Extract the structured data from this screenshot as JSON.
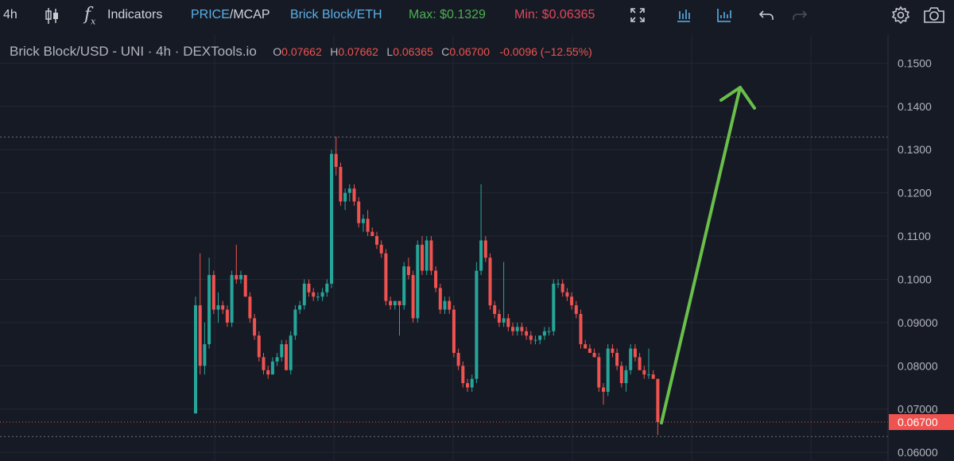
{
  "toolbar": {
    "interval": "4h",
    "indicators_label": "Indicators",
    "price_label": "PRICE",
    "mcap_label": "/MCAP",
    "pair_label": "Brick Block/ETH",
    "max_label": "Max: $0.1329",
    "min_label": "Min: $0.06365"
  },
  "legend": {
    "symbol": "Brick Block/USD - UNI · 4h · DEXTools.io",
    "o_key": "O",
    "o_val": "0.07662",
    "h_key": "H",
    "h_val": "0.07662",
    "l_key": "L",
    "l_val": "0.06365",
    "c_key": "C",
    "c_val": "0.06700",
    "change": "-0.0096 (−12.55%)"
  },
  "colors": {
    "background": "#161a25",
    "up": "#26a69a",
    "down": "#ef5350",
    "arrow": "#6abf4b",
    "max_text": "#4caf50",
    "min_text": "#e0475b",
    "link_text": "#5ab1e8"
  },
  "chart_data": {
    "type": "candlestick",
    "ylim": [
      0.058,
      0.1565
    ],
    "y_ticks": [
      "0.1500",
      "0.1400",
      "0.1300",
      "0.1200",
      "0.1100",
      "0.1000",
      "0.09000",
      "0.08000",
      "0.07000",
      "0.06000"
    ],
    "last_price_label": "0.06700",
    "max_line": 0.1329,
    "min_line": 0.06365,
    "last_price": 0.067,
    "candles": [
      [
        0.069,
        0.096,
        0.069,
        0.094
      ],
      [
        0.094,
        0.106,
        0.078,
        0.08
      ],
      [
        0.08,
        0.09,
        0.078,
        0.085
      ],
      [
        0.085,
        0.105,
        0.084,
        0.101
      ],
      [
        0.101,
        0.102,
        0.092,
        0.093
      ],
      [
        0.093,
        0.097,
        0.09,
        0.094
      ],
      [
        0.094,
        0.095,
        0.092,
        0.093
      ],
      [
        0.093,
        0.094,
        0.089,
        0.09
      ],
      [
        0.09,
        0.102,
        0.089,
        0.101
      ],
      [
        0.101,
        0.108,
        0.099,
        0.1
      ],
      [
        0.1,
        0.102,
        0.099,
        0.101
      ],
      [
        0.101,
        0.101,
        0.096,
        0.096
      ],
      [
        0.096,
        0.097,
        0.09,
        0.091
      ],
      [
        0.091,
        0.092,
        0.086,
        0.087
      ],
      [
        0.087,
        0.088,
        0.081,
        0.082
      ],
      [
        0.082,
        0.083,
        0.078,
        0.079
      ],
      [
        0.079,
        0.08,
        0.077,
        0.078
      ],
      [
        0.078,
        0.082,
        0.078,
        0.081
      ],
      [
        0.081,
        0.083,
        0.08,
        0.082
      ],
      [
        0.082,
        0.086,
        0.081,
        0.085
      ],
      [
        0.085,
        0.086,
        0.079,
        0.079
      ],
      [
        0.079,
        0.088,
        0.078,
        0.087
      ],
      [
        0.087,
        0.094,
        0.086,
        0.093
      ],
      [
        0.093,
        0.095,
        0.092,
        0.094
      ],
      [
        0.094,
        0.1,
        0.093,
        0.099
      ],
      [
        0.099,
        0.1,
        0.096,
        0.097
      ],
      [
        0.097,
        0.098,
        0.095,
        0.096
      ],
      [
        0.096,
        0.097,
        0.095,
        0.096
      ],
      [
        0.096,
        0.098,
        0.095,
        0.097
      ],
      [
        0.097,
        0.1,
        0.096,
        0.099
      ],
      [
        0.099,
        0.13,
        0.098,
        0.129
      ],
      [
        0.129,
        0.133,
        0.124,
        0.126
      ],
      [
        0.126,
        0.127,
        0.117,
        0.118
      ],
      [
        0.118,
        0.121,
        0.116,
        0.12
      ],
      [
        0.12,
        0.122,
        0.118,
        0.121
      ],
      [
        0.121,
        0.122,
        0.117,
        0.118
      ],
      [
        0.118,
        0.119,
        0.112,
        0.113
      ],
      [
        0.113,
        0.115,
        0.111,
        0.114
      ],
      [
        0.114,
        0.116,
        0.11,
        0.111
      ],
      [
        0.111,
        0.112,
        0.11,
        0.11
      ],
      [
        0.11,
        0.111,
        0.107,
        0.108
      ],
      [
        0.108,
        0.109,
        0.105,
        0.106
      ],
      [
        0.106,
        0.107,
        0.094,
        0.095
      ],
      [
        0.095,
        0.096,
        0.093,
        0.094
      ],
      [
        0.094,
        0.095,
        0.093,
        0.095
      ],
      [
        0.095,
        0.095,
        0.087,
        0.094
      ],
      [
        0.094,
        0.104,
        0.093,
        0.103
      ],
      [
        0.103,
        0.105,
        0.1,
        0.101
      ],
      [
        0.101,
        0.102,
        0.09,
        0.091
      ],
      [
        0.091,
        0.109,
        0.09,
        0.108
      ],
      [
        0.108,
        0.11,
        0.101,
        0.102
      ],
      [
        0.102,
        0.11,
        0.101,
        0.109
      ],
      [
        0.109,
        0.11,
        0.101,
        0.102
      ],
      [
        0.102,
        0.103,
        0.097,
        0.098
      ],
      [
        0.098,
        0.099,
        0.092,
        0.093
      ],
      [
        0.093,
        0.096,
        0.092,
        0.095
      ],
      [
        0.095,
        0.096,
        0.092,
        0.093
      ],
      [
        0.093,
        0.094,
        0.082,
        0.083
      ],
      [
        0.083,
        0.084,
        0.079,
        0.08
      ],
      [
        0.08,
        0.081,
        0.075,
        0.076
      ],
      [
        0.076,
        0.077,
        0.074,
        0.075
      ],
      [
        0.075,
        0.078,
        0.074,
        0.077
      ],
      [
        0.077,
        0.104,
        0.076,
        0.102
      ],
      [
        0.102,
        0.122,
        0.101,
        0.109
      ],
      [
        0.109,
        0.11,
        0.104,
        0.105
      ],
      [
        0.105,
        0.106,
        0.093,
        0.094
      ],
      [
        0.094,
        0.095,
        0.091,
        0.092
      ],
      [
        0.092,
        0.093,
        0.089,
        0.09
      ],
      [
        0.09,
        0.104,
        0.089,
        0.091
      ],
      [
        0.091,
        0.092,
        0.088,
        0.089
      ],
      [
        0.089,
        0.09,
        0.087,
        0.088
      ],
      [
        0.088,
        0.09,
        0.087,
        0.089
      ],
      [
        0.089,
        0.09,
        0.087,
        0.088
      ],
      [
        0.088,
        0.089,
        0.086,
        0.087
      ],
      [
        0.087,
        0.088,
        0.085,
        0.086
      ],
      [
        0.086,
        0.087,
        0.085,
        0.086
      ],
      [
        0.086,
        0.087,
        0.085,
        0.087
      ],
      [
        0.087,
        0.089,
        0.086,
        0.088
      ],
      [
        0.088,
        0.089,
        0.087,
        0.088
      ],
      [
        0.088,
        0.1,
        0.087,
        0.099
      ],
      [
        0.099,
        0.1,
        0.098,
        0.099
      ],
      [
        0.099,
        0.1,
        0.096,
        0.097
      ],
      [
        0.097,
        0.098,
        0.095,
        0.096
      ],
      [
        0.096,
        0.097,
        0.093,
        0.094
      ],
      [
        0.094,
        0.095,
        0.091,
        0.092
      ],
      [
        0.092,
        0.093,
        0.084,
        0.085
      ],
      [
        0.085,
        0.086,
        0.084,
        0.084
      ],
      [
        0.084,
        0.085,
        0.083,
        0.083
      ],
      [
        0.083,
        0.084,
        0.082,
        0.082
      ],
      [
        0.082,
        0.083,
        0.074,
        0.075
      ],
      [
        0.075,
        0.076,
        0.071,
        0.074
      ],
      [
        0.074,
        0.085,
        0.073,
        0.084
      ],
      [
        0.084,
        0.085,
        0.082,
        0.083
      ],
      [
        0.083,
        0.084,
        0.079,
        0.08
      ],
      [
        0.08,
        0.081,
        0.075,
        0.076
      ],
      [
        0.076,
        0.08,
        0.074,
        0.079
      ],
      [
        0.079,
        0.085,
        0.078,
        0.084
      ],
      [
        0.084,
        0.085,
        0.081,
        0.082
      ],
      [
        0.082,
        0.083,
        0.079,
        0.079
      ],
      [
        0.079,
        0.08,
        0.077,
        0.078
      ],
      [
        0.078,
        0.084,
        0.077,
        0.078
      ],
      [
        0.078,
        0.079,
        0.077,
        0.077
      ],
      [
        0.077,
        0.077,
        0.064,
        0.067
      ]
    ]
  }
}
